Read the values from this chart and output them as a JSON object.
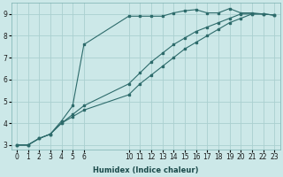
{
  "xlabel": "Humidex (Indice chaleur)",
  "bg_color": "#cce8e8",
  "line_color": "#2d6b6b",
  "grid_color": "#aad0d0",
  "xlim": [
    -0.5,
    23.5
  ],
  "ylim": [
    2.8,
    9.5
  ],
  "line1_x": [
    0,
    1,
    2,
    3,
    4,
    5,
    6,
    10,
    11,
    12,
    13,
    14,
    15,
    16,
    17,
    18,
    19,
    20,
    21,
    22,
    23
  ],
  "line1_y": [
    3.0,
    3.0,
    3.3,
    3.5,
    4.1,
    4.8,
    7.6,
    8.9,
    8.9,
    8.9,
    8.9,
    9.05,
    9.15,
    9.2,
    9.05,
    9.05,
    9.25,
    9.05,
    9.05,
    9.0,
    8.95
  ],
  "line2_x": [
    0,
    1,
    2,
    3,
    4,
    5,
    6,
    10,
    11,
    12,
    13,
    14,
    15,
    16,
    17,
    18,
    19,
    20,
    21,
    22,
    23
  ],
  "line2_y": [
    3.0,
    3.0,
    3.3,
    3.5,
    4.0,
    4.4,
    4.8,
    5.8,
    6.3,
    6.8,
    7.2,
    7.6,
    7.9,
    8.2,
    8.4,
    8.6,
    8.8,
    9.0,
    9.0,
    9.0,
    8.95
  ],
  "line3_x": [
    0,
    1,
    2,
    3,
    4,
    5,
    6,
    10,
    11,
    12,
    13,
    14,
    15,
    16,
    17,
    18,
    19,
    20,
    21,
    22,
    23
  ],
  "line3_y": [
    3.0,
    3.0,
    3.3,
    3.5,
    4.0,
    4.3,
    4.6,
    5.3,
    5.8,
    6.2,
    6.6,
    7.0,
    7.4,
    7.7,
    8.0,
    8.3,
    8.6,
    8.8,
    9.0,
    9.0,
    8.95
  ],
  "xticks": [
    0,
    1,
    2,
    3,
    4,
    5,
    6,
    10,
    11,
    12,
    13,
    14,
    15,
    16,
    17,
    18,
    19,
    20,
    21,
    22,
    23
  ],
  "yticks": [
    3,
    4,
    5,
    6,
    7,
    8,
    9
  ],
  "marker_size": 2.0,
  "line_width": 0.8,
  "xlabel_fontsize": 6.0,
  "tick_fontsize": 5.5
}
